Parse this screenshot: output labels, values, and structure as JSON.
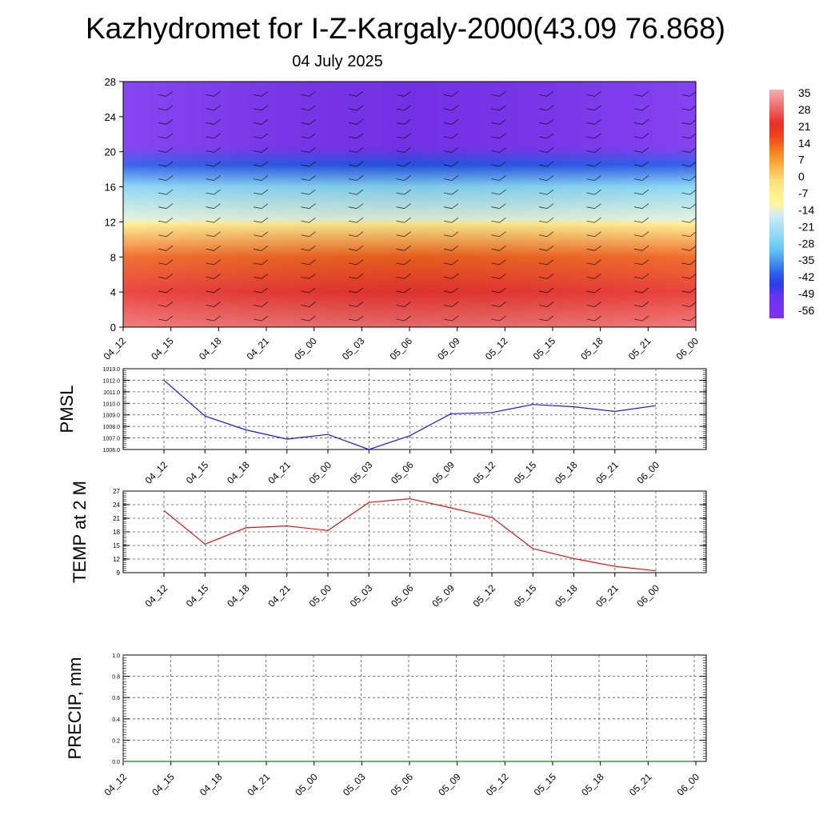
{
  "title": "Kazhydromet for I-Z-Kargaly-2000(43.09 76.868)",
  "subtitle": "04 July 2025",
  "chart_data": [
    {
      "type": "heatmap",
      "name": "temperature-profile",
      "x_ticks": [
        "04_12",
        "04_15",
        "04_18",
        "04_21",
        "05_00",
        "05_03",
        "05_06",
        "05_09",
        "05_12",
        "05_15",
        "05_18",
        "05_21",
        "06_00"
      ],
      "y_ticks": [
        0,
        4,
        8,
        12,
        16,
        20,
        24,
        28
      ],
      "ylim": [
        0,
        28
      ],
      "colorbar": {
        "labels": [
          35,
          28,
          21,
          14,
          7,
          0,
          -7,
          -14,
          -21,
          -28,
          -35,
          -42,
          -49,
          -56
        ],
        "range": [
          -60,
          38
        ],
        "colors": {
          "warm_red": "#e8211c",
          "orange": "#f5901e",
          "yellow": "#fff9a0",
          "light_blue": "#66ccf2",
          "blue": "#1a40e6",
          "violet": "#7a32f0"
        }
      },
      "layers": [
        {
          "height": 0,
          "value": 31
        },
        {
          "height": 4,
          "value": 24
        },
        {
          "height": 8,
          "value": 15
        },
        {
          "height": 11.8,
          "value": -6
        },
        {
          "height": 12.3,
          "value": -14
        },
        {
          "height": 16,
          "value": -26
        },
        {
          "height": 18.5,
          "value": -42
        },
        {
          "height": 20.5,
          "value": -56
        },
        {
          "height": 22.5,
          "value": -58
        },
        {
          "height": 28,
          "value": -58
        }
      ]
    },
    {
      "type": "line",
      "name": "pmsl",
      "ylabel": "PMSL",
      "categories": [
        "04_12",
        "04_15",
        "04_18",
        "04_21",
        "05_00",
        "05_03",
        "05_06",
        "05_09",
        "05_12",
        "05_15",
        "05_18",
        "05_21",
        "06_00"
      ],
      "values": [
        1012.0,
        1008.9,
        1007.7,
        1006.9,
        1007.3,
        1006.0,
        1007.2,
        1009.1,
        1009.2,
        1009.9,
        1009.7,
        1009.3,
        1009.8
      ],
      "ylim": [
        1006.0,
        1013.0
      ],
      "y_ticks": [
        "1006.0",
        "1007.0",
        "1008.0",
        "1009.0",
        "1010.0",
        "1011.0",
        "1012.0",
        "1013.0"
      ],
      "color": "#1a1ad6"
    },
    {
      "type": "line",
      "name": "temp2m",
      "ylabel": "TEMP at 2 M",
      "categories": [
        "04_12",
        "04_15",
        "04_18",
        "04_21",
        "05_00",
        "05_03",
        "05_06",
        "05_09",
        "05_12",
        "05_15",
        "05_18",
        "05_21",
        "06_00"
      ],
      "values": [
        22.7,
        15.3,
        18.9,
        19.3,
        18.3,
        24.5,
        25.3,
        23.3,
        21.2,
        14.3,
        12.1,
        10.4,
        9.4
      ],
      "ylim": [
        9,
        27
      ],
      "y_ticks": [
        9,
        12,
        15,
        18,
        21,
        24,
        27
      ],
      "color": "#e01515"
    },
    {
      "type": "line",
      "name": "precip",
      "ylabel": "PRECIP, mm",
      "categories": [
        "04_12",
        "04_15",
        "04_18",
        "04_21",
        "05_00",
        "05_03",
        "05_06",
        "05_09",
        "05_12",
        "05_15",
        "05_18",
        "05_21",
        "06_00"
      ],
      "values": [
        0,
        0,
        0,
        0,
        0,
        0,
        0,
        0,
        0,
        0,
        0,
        0,
        0
      ],
      "ylim": [
        0,
        1
      ],
      "y_ticks": [
        "0.0",
        "0.2",
        "0.4",
        "0.6",
        "0.8",
        "1.0"
      ],
      "color": "#1a7a1a"
    }
  ]
}
